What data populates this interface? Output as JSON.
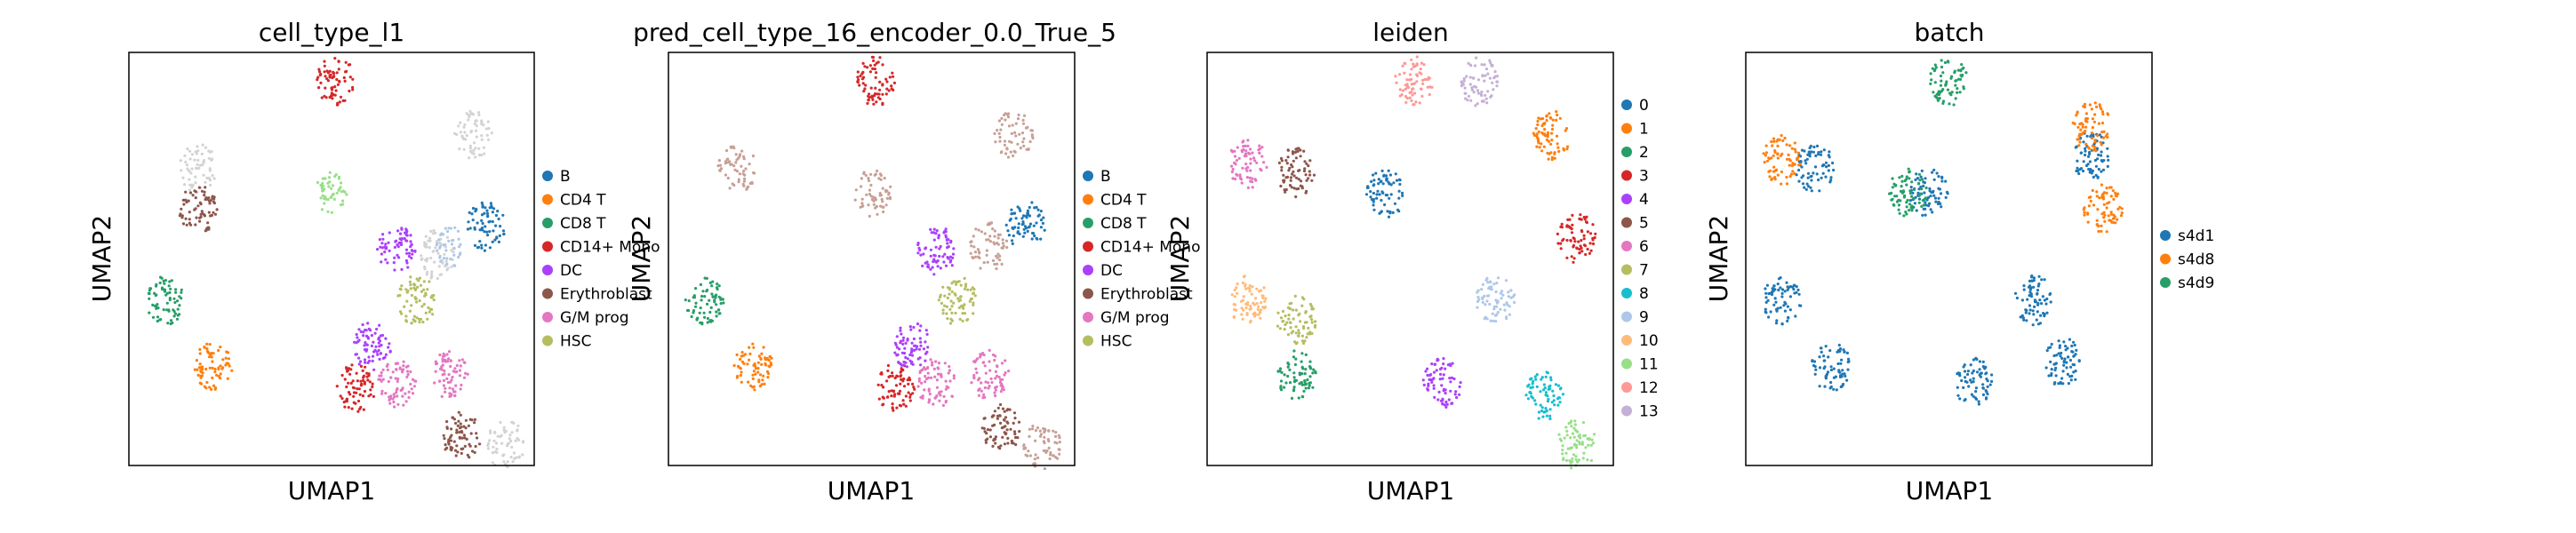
{
  "panels": [
    {
      "title": "cell_type_l1",
      "xlabel": "UMAP1",
      "ylabel": "UMAP2",
      "legend": [
        {
          "label": "B",
          "color": "#1f77b4"
        },
        {
          "label": "CD4 T",
          "color": "#ff7f0e"
        },
        {
          "label": "CD8 T",
          "color": "#279e68"
        },
        {
          "label": "CD14+ Mono",
          "color": "#d62728"
        },
        {
          "label": "DC",
          "color": "#aa40fc"
        },
        {
          "label": "Erythroblast",
          "color": "#8c564b"
        },
        {
          "label": "G/M prog",
          "color": "#e377c2"
        },
        {
          "label": "HSC",
          "color": "#b5bd61"
        }
      ]
    },
    {
      "title": "pred_cell_type_16_encoder_0.0_True_5",
      "xlabel": "UMAP1",
      "ylabel": "UMAP2",
      "legend": [
        {
          "label": "B",
          "color": "#1f77b4"
        },
        {
          "label": "CD4 T",
          "color": "#ff7f0e"
        },
        {
          "label": "CD8 T",
          "color": "#279e68"
        },
        {
          "label": "CD14+ Mono",
          "color": "#d62728"
        },
        {
          "label": "DC",
          "color": "#aa40fc"
        },
        {
          "label": "Erythroblast",
          "color": "#8c564b"
        },
        {
          "label": "G/M prog",
          "color": "#e377c2"
        },
        {
          "label": "HSC",
          "color": "#b5bd61"
        }
      ]
    },
    {
      "title": "leiden",
      "xlabel": "UMAP1",
      "ylabel": "UMAP2",
      "legend": [
        {
          "label": "0",
          "color": "#1f77b4"
        },
        {
          "label": "1",
          "color": "#ff7f0e"
        },
        {
          "label": "2",
          "color": "#279e68"
        },
        {
          "label": "3",
          "color": "#d62728"
        },
        {
          "label": "4",
          "color": "#aa40fc"
        },
        {
          "label": "5",
          "color": "#8c564b"
        },
        {
          "label": "6",
          "color": "#e377c2"
        },
        {
          "label": "7",
          "color": "#b5bd61"
        },
        {
          "label": "8",
          "color": "#17becf"
        },
        {
          "label": "9",
          "color": "#aec7e8"
        },
        {
          "label": "10",
          "color": "#ffbb78"
        },
        {
          "label": "11",
          "color": "#98df8a"
        },
        {
          "label": "12",
          "color": "#ff9896"
        },
        {
          "label": "13",
          "color": "#c5b0d5"
        }
      ]
    },
    {
      "title": "batch",
      "xlabel": "UMAP1",
      "ylabel": "UMAP2",
      "legend": [
        {
          "label": "s4d1",
          "color": "#1f77b4"
        },
        {
          "label": "s4d8",
          "color": "#ff7f0e"
        },
        {
          "label": "s4d9",
          "color": "#279e68"
        }
      ]
    }
  ],
  "chart_data": [
    {
      "type": "scatter",
      "title": "cell_type_l1",
      "xlabel": "UMAP1",
      "ylabel": "UMAP2",
      "grid": false,
      "legend_position": "right",
      "unlabeled_color": "#d3d3d3",
      "series": [
        {
          "name": "B",
          "color": "#1f77b4",
          "clusters": [
            [
              0.88,
              0.58
            ]
          ]
        },
        {
          "name": "CD4 T",
          "color": "#ff7f0e",
          "clusters": [
            [
              0.21,
              0.24
            ]
          ]
        },
        {
          "name": "CD8 T",
          "color": "#279e68",
          "clusters": [
            [
              0.09,
              0.4
            ]
          ]
        },
        {
          "name": "CD14+ Mono",
          "color": "#d62728",
          "clusters": [
            [
              0.56,
              0.19
            ],
            [
              0.51,
              0.93
            ]
          ]
        },
        {
          "name": "DC",
          "color": "#aa40fc",
          "clusters": [
            [
              0.6,
              0.29
            ],
            [
              0.66,
              0.52
            ]
          ]
        },
        {
          "name": "Erythroblast",
          "color": "#8c564b",
          "clusters": [
            [
              0.82,
              0.07
            ],
            [
              0.17,
              0.62
            ]
          ]
        },
        {
          "name": "G/M prog",
          "color": "#e377c2",
          "clusters": [
            [
              0.66,
              0.2
            ],
            [
              0.79,
              0.22
            ]
          ]
        },
        {
          "name": "HSC",
          "color": "#b5bd61",
          "clusters": [
            [
              0.71,
              0.4
            ]
          ]
        }
      ],
      "unlabeled_clusters": [
        [
          0.17,
          0.72
        ],
        [
          0.85,
          0.8
        ],
        [
          0.76,
          0.51
        ],
        [
          0.93,
          0.05
        ]
      ],
      "light_green_clusters": [
        [
          0.5,
          0.66
        ]
      ],
      "light_blue_clusters": [
        [
          0.79,
          0.53
        ]
      ]
    },
    {
      "type": "scatter",
      "title": "pred_cell_type_16_encoder_0.0_True_5",
      "xlabel": "UMAP1",
      "ylabel": "UMAP2",
      "grid": false,
      "legend_position": "right",
      "series": [
        {
          "name": "B",
          "color": "#1f77b4",
          "clusters": [
            [
              0.88,
              0.58
            ]
          ]
        },
        {
          "name": "CD4 T",
          "color": "#ff7f0e",
          "clusters": [
            [
              0.21,
              0.24
            ]
          ]
        },
        {
          "name": "CD8 T",
          "color": "#279e68",
          "clusters": [
            [
              0.09,
              0.4
            ]
          ]
        },
        {
          "name": "CD14+ Mono",
          "color": "#d62728",
          "clusters": [
            [
              0.56,
              0.19
            ],
            [
              0.51,
              0.93
            ]
          ]
        },
        {
          "name": "DC",
          "color": "#aa40fc",
          "clusters": [
            [
              0.6,
              0.29
            ],
            [
              0.66,
              0.52
            ]
          ]
        },
        {
          "name": "Erythroblast",
          "color": "#8c564b",
          "clusters": [
            [
              0.82,
              0.09
            ]
          ]
        },
        {
          "name": "G/M prog",
          "color": "#e377c2",
          "clusters": [
            [
              0.66,
              0.2
            ],
            [
              0.79,
              0.22
            ]
          ]
        },
        {
          "name": "HSC",
          "color": "#b5bd61",
          "clusters": [
            [
              0.71,
              0.4
            ]
          ]
        }
      ],
      "other_clusters": [
        [
          0.17,
          0.72
        ],
        [
          0.85,
          0.8
        ],
        [
          0.5,
          0.66
        ],
        [
          0.79,
          0.53
        ],
        [
          0.92,
          0.05
        ]
      ]
    },
    {
      "type": "scatter",
      "title": "leiden",
      "xlabel": "UMAP1",
      "ylabel": "UMAP2",
      "grid": false,
      "legend_position": "right",
      "series": [
        {
          "name": "0",
          "color": "#1f77b4",
          "clusters": [
            [
              0.44,
              0.66
            ]
          ]
        },
        {
          "name": "1",
          "color": "#ff7f0e",
          "clusters": [
            [
              0.85,
              0.8
            ]
          ]
        },
        {
          "name": "2",
          "color": "#279e68",
          "clusters": [
            [
              0.22,
              0.22
            ]
          ]
        },
        {
          "name": "3",
          "color": "#d62728",
          "clusters": [
            [
              0.91,
              0.55
            ]
          ]
        },
        {
          "name": "4",
          "color": "#aa40fc",
          "clusters": [
            [
              0.58,
              0.2
            ]
          ]
        },
        {
          "name": "5",
          "color": "#8c564b",
          "clusters": [
            [
              0.22,
              0.71
            ]
          ]
        },
        {
          "name": "6",
          "color": "#e377c2",
          "clusters": [
            [
              0.1,
              0.73
            ]
          ]
        },
        {
          "name": "7",
          "color": "#b5bd61",
          "clusters": [
            [
              0.22,
              0.35
            ]
          ]
        },
        {
          "name": "8",
          "color": "#17becf",
          "clusters": [
            [
              0.83,
              0.17
            ]
          ]
        },
        {
          "name": "9",
          "color": "#aec7e8",
          "clusters": [
            [
              0.71,
              0.4
            ]
          ]
        },
        {
          "name": "10",
          "color": "#ffbb78",
          "clusters": [
            [
              0.1,
              0.4
            ]
          ]
        },
        {
          "name": "11",
          "color": "#98df8a",
          "clusters": [
            [
              0.91,
              0.05
            ]
          ]
        },
        {
          "name": "12",
          "color": "#ff9896",
          "clusters": [
            [
              0.51,
              0.93
            ]
          ]
        },
        {
          "name": "13",
          "color": "#c5b0d5",
          "clusters": [
            [
              0.67,
              0.93
            ]
          ]
        }
      ]
    },
    {
      "type": "scatter",
      "title": "batch",
      "xlabel": "UMAP1",
      "ylabel": "UMAP2",
      "grid": false,
      "legend_position": "right",
      "series": [
        {
          "name": "s4d1",
          "color": "#1f77b4",
          "clusters": [
            [
              0.17,
              0.72
            ],
            [
              0.45,
              0.66
            ],
            [
              0.85,
              0.75
            ],
            [
              0.21,
              0.24
            ],
            [
              0.09,
              0.4
            ],
            [
              0.56,
              0.2
            ],
            [
              0.78,
              0.25
            ],
            [
              0.71,
              0.4
            ]
          ]
        },
        {
          "name": "s4d8",
          "color": "#ff7f0e",
          "clusters": [
            [
              0.09,
              0.74
            ],
            [
              0.88,
              0.62
            ],
            [
              0.85,
              0.82
            ]
          ]
        },
        {
          "name": "s4d9",
          "color": "#279e68",
          "clusters": [
            [
              0.4,
              0.66
            ],
            [
              0.5,
              0.93
            ]
          ]
        }
      ]
    }
  ]
}
